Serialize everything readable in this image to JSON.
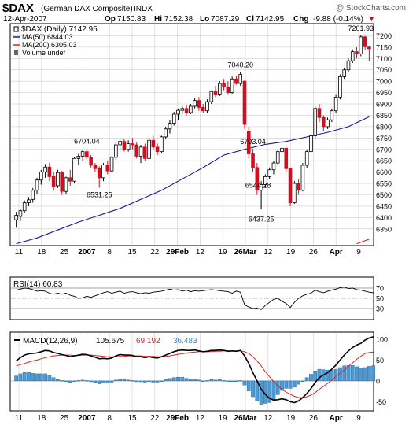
{
  "header": {
    "ticker": "$DAX",
    "name": "(German DAX Composite)",
    "exchange": "INDX",
    "watermark": "@ StockCharts.com",
    "date": "12-Apr-2007",
    "stats": [
      {
        "label": "Op",
        "value": "7150.83"
      },
      {
        "label": "Hi",
        "value": "7152.38"
      },
      {
        "label": "Lo",
        "value": "7087.29"
      },
      {
        "label": "Cl",
        "value": "7142.95"
      },
      {
        "label": "Chg",
        "value": "-9.88 (-0.14%)"
      }
    ],
    "change_marker": "▼"
  },
  "legend": {
    "price": "$DAX (Daily) 7142.95",
    "ma50": "MA(50) 6844.03",
    "ma200": "MA(200) 6305.03",
    "volume": "Volume undef",
    "rsi": "RSI(14) 60.83",
    "macd_label": "MACD(12,26,9)",
    "macd_value": "105.675",
    "signal_value": "69.192",
    "hist_value": "36.483"
  },
  "x_labels": [
    "11",
    "18",
    "25",
    "2007",
    "8",
    "15",
    "22",
    "29Feb",
    "12",
    "19",
    "26Mar",
    "12",
    "19",
    "26",
    "Apr",
    "9"
  ],
  "colors": {
    "up": "#ffffff",
    "down": "#cc1122",
    "candle_outline": "#000000",
    "ma50": "#1a1a8c",
    "ma200": "#dd2222",
    "macd": "#000000",
    "signal": "#dd2222",
    "hist": "#4c9ad3",
    "hist_outline": "#1f5f99",
    "rsi": "#000000",
    "grid": "#cccccc"
  },
  "chart_data": [
    {
      "type": "candlestick",
      "title": "$DAX (Daily) 7142.95",
      "ylim": [
        6280,
        7250
      ],
      "y_ticks": [
        6350,
        6400,
        6450,
        6500,
        6550,
        6600,
        6650,
        6700,
        6750,
        6800,
        6850,
        6900,
        6950,
        7000,
        7050,
        7100,
        7150,
        7200
      ],
      "y_axis_side": "right",
      "grid": true,
      "candles": [
        {
          "o": 6390,
          "h": 6425,
          "l": 6355,
          "c": 6410
        },
        {
          "o": 6405,
          "h": 6440,
          "l": 6385,
          "c": 6430
        },
        {
          "o": 6430,
          "h": 6475,
          "l": 6420,
          "c": 6465
        },
        {
          "o": 6465,
          "h": 6490,
          "l": 6450,
          "c": 6478
        },
        {
          "o": 6480,
          "h": 6530,
          "l": 6465,
          "c": 6520
        },
        {
          "o": 6520,
          "h": 6575,
          "l": 6505,
          "c": 6565
        },
        {
          "o": 6565,
          "h": 6610,
          "l": 6545,
          "c": 6600
        },
        {
          "o": 6600,
          "h": 6635,
          "l": 6575,
          "c": 6622
        },
        {
          "o": 6622,
          "h": 6640,
          "l": 6560,
          "c": 6580
        },
        {
          "o": 6580,
          "h": 6600,
          "l": 6520,
          "c": 6535
        },
        {
          "o": 6540,
          "h": 6610,
          "l": 6530,
          "c": 6598
        },
        {
          "o": 6598,
          "h": 6605,
          "l": 6500,
          "c": 6515
        },
        {
          "o": 6515,
          "h": 6580,
          "l": 6505,
          "c": 6575
        },
        {
          "o": 6575,
          "h": 6610,
          "l": 6540,
          "c": 6560
        },
        {
          "o": 6560,
          "h": 6665,
          "l": 6550,
          "c": 6660
        },
        {
          "o": 6660,
          "h": 6680,
          "l": 6630,
          "c": 6670
        },
        {
          "o": 6670,
          "h": 6700,
          "l": 6650,
          "c": 6690
        },
        {
          "o": 6690,
          "h": 6704.04,
          "l": 6655,
          "c": 6665
        },
        {
          "o": 6665,
          "h": 6675,
          "l": 6620,
          "c": 6630
        },
        {
          "o": 6630,
          "h": 6640,
          "l": 6600,
          "c": 6615
        },
        {
          "o": 6615,
          "h": 6625,
          "l": 6531.25,
          "c": 6575
        },
        {
          "o": 6575,
          "h": 6640,
          "l": 6560,
          "c": 6632
        },
        {
          "o": 6632,
          "h": 6650,
          "l": 6590,
          "c": 6605
        },
        {
          "o": 6605,
          "h": 6670,
          "l": 6600,
          "c": 6665
        },
        {
          "o": 6665,
          "h": 6730,
          "l": 6655,
          "c": 6720
        },
        {
          "o": 6720,
          "h": 6745,
          "l": 6700,
          "c": 6735
        },
        {
          "o": 6735,
          "h": 6745,
          "l": 6690,
          "c": 6700
        },
        {
          "o": 6700,
          "h": 6740,
          "l": 6690,
          "c": 6725
        },
        {
          "o": 6725,
          "h": 6750,
          "l": 6700,
          "c": 6720
        },
        {
          "o": 6720,
          "h": 6730,
          "l": 6660,
          "c": 6670
        },
        {
          "o": 6670,
          "h": 6720,
          "l": 6640,
          "c": 6710
        },
        {
          "o": 6710,
          "h": 6725,
          "l": 6650,
          "c": 6660
        },
        {
          "o": 6660,
          "h": 6750,
          "l": 6655,
          "c": 6740
        },
        {
          "o": 6740,
          "h": 6760,
          "l": 6700,
          "c": 6710
        },
        {
          "o": 6710,
          "h": 6725,
          "l": 6675,
          "c": 6690
        },
        {
          "o": 6690,
          "h": 6760,
          "l": 6685,
          "c": 6755
        },
        {
          "o": 6755,
          "h": 6800,
          "l": 6745,
          "c": 6790
        },
        {
          "o": 6790,
          "h": 6830,
          "l": 6770,
          "c": 6815
        },
        {
          "o": 6815,
          "h": 6865,
          "l": 6805,
          "c": 6855
        },
        {
          "o": 6855,
          "h": 6880,
          "l": 6830,
          "c": 6872
        },
        {
          "o": 6872,
          "h": 6890,
          "l": 6855,
          "c": 6880
        },
        {
          "o": 6880,
          "h": 6895,
          "l": 6850,
          "c": 6862
        },
        {
          "o": 6862,
          "h": 6900,
          "l": 6855,
          "c": 6890
        },
        {
          "o": 6890,
          "h": 6925,
          "l": 6880,
          "c": 6915
        },
        {
          "o": 6915,
          "h": 6930,
          "l": 6870,
          "c": 6885
        },
        {
          "o": 6885,
          "h": 6900,
          "l": 6860,
          "c": 6870
        },
        {
          "o": 6870,
          "h": 6920,
          "l": 6860,
          "c": 6910
        },
        {
          "o": 6910,
          "h": 6960,
          "l": 6900,
          "c": 6955
        },
        {
          "o": 6955,
          "h": 6980,
          "l": 6930,
          "c": 6940
        },
        {
          "o": 6940,
          "h": 7000,
          "l": 6935,
          "c": 6990
        },
        {
          "o": 6990,
          "h": 7010,
          "l": 6960,
          "c": 6975
        },
        {
          "o": 6975,
          "h": 7000,
          "l": 6940,
          "c": 6950
        },
        {
          "o": 6950,
          "h": 7020,
          "l": 6945,
          "c": 7010
        },
        {
          "o": 7010,
          "h": 7025,
          "l": 6985,
          "c": 6990
        },
        {
          "o": 6990,
          "h": 7040.2,
          "l": 6980,
          "c": 7030
        },
        {
          "o": 7000,
          "h": 7005,
          "l": 6790,
          "c": 6810
        },
        {
          "o": 6780,
          "h": 6800,
          "l": 6660,
          "c": 6680
        },
        {
          "o": 6680,
          "h": 6703.04,
          "l": 6600,
          "c": 6620
        },
        {
          "o": 6620,
          "h": 6640,
          "l": 6500,
          "c": 6520
        },
        {
          "o": 6520,
          "h": 6560,
          "l": 6437.25,
          "c": 6545
        },
        {
          "o": 6545,
          "h": 6590,
          "l": 6530,
          "c": 6580
        },
        {
          "o": 6580,
          "h": 6620,
          "l": 6570,
          "c": 6610
        },
        {
          "o": 6610,
          "h": 6650,
          "l": 6590,
          "c": 6640
        },
        {
          "o": 6640,
          "h": 6700,
          "l": 6630,
          "c": 6690
        },
        {
          "o": 6690,
          "h": 6720,
          "l": 6660,
          "c": 6705
        },
        {
          "o": 6705,
          "h": 6710,
          "l": 6600,
          "c": 6615
        },
        {
          "o": 6615,
          "h": 6620,
          "l": 6450,
          "c": 6465
        },
        {
          "o": 6465,
          "h": 6560,
          "l": 6460,
          "c": 6550
        },
        {
          "o": 6550,
          "h": 6570,
          "l": 6500,
          "c": 6520
        },
        {
          "o": 6520,
          "h": 6640,
          "l": 6515,
          "c": 6630
        },
        {
          "o": 6630,
          "h": 6700,
          "l": 6620,
          "c": 6690
        },
        {
          "o": 6690,
          "h": 6770,
          "l": 6680,
          "c": 6760
        },
        {
          "o": 6760,
          "h": 6890,
          "l": 6750,
          "c": 6880
        },
        {
          "o": 6880,
          "h": 6900,
          "l": 6820,
          "c": 6840
        },
        {
          "o": 6840,
          "h": 6850,
          "l": 6780,
          "c": 6800
        },
        {
          "o": 6800,
          "h": 6840,
          "l": 6790,
          "c": 6830
        },
        {
          "o": 6830,
          "h": 6880,
          "l": 6820,
          "c": 6870
        },
        {
          "o": 6870,
          "h": 6940,
          "l": 6860,
          "c": 6930
        },
        {
          "o": 6930,
          "h": 7030,
          "l": 6920,
          "c": 7020
        },
        {
          "o": 7020,
          "h": 7060,
          "l": 7010,
          "c": 7050
        },
        {
          "o": 7050,
          "h": 7100,
          "l": 7040,
          "c": 7090
        },
        {
          "o": 7090,
          "h": 7140,
          "l": 7080,
          "c": 7130
        },
        {
          "o": 7130,
          "h": 7150,
          "l": 7100,
          "c": 7120
        },
        {
          "o": 7120,
          "h": 7201.93,
          "l": 7110,
          "c": 7195
        },
        {
          "o": 7195,
          "h": 7200,
          "l": 7140,
          "c": 7152
        },
        {
          "o": 7150.83,
          "h": 7152.38,
          "l": 7087.29,
          "c": 7142.95
        }
      ],
      "annotations": [
        {
          "text": "7201.93",
          "value": 7201.93,
          "index": 83
        },
        {
          "text": "7040.20",
          "value": 7040.2,
          "index": 54
        },
        {
          "text": "6704.04",
          "value": 6704.04,
          "index": 17
        },
        {
          "text": "6531.25",
          "value": 6531.25,
          "index": 20
        },
        {
          "text": "6703.04",
          "value": 6703.04,
          "index": 57
        },
        {
          "text": "6544.28",
          "value": 6544.28,
          "index": 59
        },
        {
          "text": "6437.25",
          "value": 6437.25,
          "index": 59
        }
      ],
      "series": [
        {
          "name": "MA(50) 6844.03",
          "line": "ma50",
          "points": [
            [
              0,
              6285
            ],
            [
              5,
              6310
            ],
            [
              10,
              6345
            ],
            [
              15,
              6380
            ],
            [
              20,
              6410
            ],
            [
              25,
              6440
            ],
            [
              30,
              6480
            ],
            [
              35,
              6520
            ],
            [
              40,
              6570
            ],
            [
              45,
              6620
            ],
            [
              50,
              6675
            ],
            [
              55,
              6700
            ],
            [
              60,
              6722
            ],
            [
              65,
              6735
            ],
            [
              70,
              6755
            ],
            [
              75,
              6775
            ],
            [
              80,
              6800
            ],
            [
              85,
              6844.03
            ]
          ]
        },
        {
          "name": "MA(200) 6305.03",
          "line": "ma200",
          "points": [
            [
              82,
              6285
            ],
            [
              84,
              6298
            ],
            [
              85,
              6305.03
            ]
          ]
        }
      ]
    },
    {
      "type": "line",
      "title": "RSI(14) 60.83",
      "ylim": [
        10,
        90
      ],
      "y_ticks": [
        30,
        50,
        70
      ],
      "reference_lines": [
        30,
        70
      ],
      "series": [
        {
          "name": "RSI(14)",
          "values": [
            66,
            68,
            70,
            69,
            67,
            64,
            65,
            64,
            60,
            58,
            60,
            58,
            60,
            56,
            54,
            50,
            51,
            54,
            52,
            55,
            58,
            61,
            63,
            60,
            62,
            64,
            60,
            62,
            63,
            61,
            59,
            61,
            60,
            62,
            63,
            64,
            66,
            68,
            66,
            67,
            64,
            66,
            63,
            65,
            64,
            65,
            66,
            67,
            66,
            65,
            64,
            63,
            60,
            64,
            62,
            37,
            33,
            30,
            31,
            28,
            36,
            42,
            48,
            50,
            44,
            40,
            32,
            42,
            50,
            55,
            58,
            60,
            66,
            63,
            61,
            64,
            66,
            68,
            71,
            72,
            69,
            70,
            67,
            66,
            64,
            62,
            60.83
          ]
        }
      ]
    },
    {
      "type": "bar+line",
      "title": "MACD(12,26,9)",
      "ylim": [
        -70,
        115
      ],
      "y_ticks": [
        -50,
        0,
        50,
        100
      ],
      "series": [
        {
          "name": "MACD(12,26,9)",
          "type": "line",
          "line": "macd",
          "values": [
            48,
            56,
            62,
            65,
            66,
            67,
            70,
            73,
            72,
            68,
            66,
            63,
            61,
            58,
            60,
            62,
            64,
            63,
            60,
            57,
            53,
            54,
            53,
            55,
            60,
            63,
            62,
            62,
            61,
            58,
            58,
            56,
            58,
            56,
            55,
            58,
            62,
            66,
            70,
            73,
            74,
            73,
            73,
            74,
            72,
            70,
            71,
            73,
            73,
            74,
            73,
            71,
            72,
            71,
            73,
            60,
            42,
            20,
            0,
            -20,
            -32,
            -42,
            -46,
            -45,
            -43,
            -45,
            -50,
            -52,
            -48,
            -40,
            -30,
            -18,
            -4,
            8,
            14,
            20,
            28,
            38,
            50,
            62,
            72,
            80,
            86,
            90,
            98,
            103,
            105.675
          ]
        },
        {
          "name": "Signal",
          "type": "line",
          "line": "signal",
          "values": [
            36,
            39,
            42,
            45,
            48,
            50,
            53,
            56,
            58,
            60,
            61,
            62,
            62,
            62,
            61,
            61,
            62,
            62,
            62,
            61,
            60,
            59,
            58,
            58,
            58,
            59,
            59,
            60,
            60,
            60,
            60,
            59,
            59,
            59,
            58,
            58,
            59,
            60,
            62,
            64,
            65,
            67,
            68,
            69,
            70,
            70,
            70,
            70,
            71,
            71,
            72,
            72,
            72,
            72,
            72,
            70,
            66,
            58,
            48,
            36,
            22,
            10,
            -2,
            -12,
            -20,
            -27,
            -32,
            -37,
            -40,
            -40,
            -38,
            -34,
            -28,
            -20,
            -13,
            -6,
            2,
            10,
            18,
            26,
            35,
            43,
            52,
            59,
            66,
            68,
            69.192
          ]
        },
        {
          "name": "Histogram",
          "type": "bar",
          "values": [
            12,
            17,
            20,
            20,
            18,
            17,
            17,
            17,
            14,
            8,
            5,
            1,
            -1,
            -4,
            -1,
            1,
            2,
            1,
            -2,
            -4,
            -7,
            -5,
            -5,
            -3,
            2,
            4,
            3,
            2,
            1,
            -2,
            -2,
            -3,
            -1,
            -3,
            -3,
            0,
            3,
            6,
            8,
            9,
            9,
            6,
            5,
            5,
            2,
            0,
            1,
            3,
            2,
            3,
            1,
            -1,
            0,
            -1,
            1,
            -10,
            -24,
            -38,
            -48,
            -56,
            -54,
            -52,
            -44,
            -33,
            -23,
            -18,
            -18,
            -15,
            -8,
            0,
            8,
            16,
            24,
            28,
            27,
            26,
            26,
            28,
            32,
            36,
            37,
            37,
            34,
            31,
            32,
            35,
            36.483
          ]
        }
      ]
    }
  ]
}
